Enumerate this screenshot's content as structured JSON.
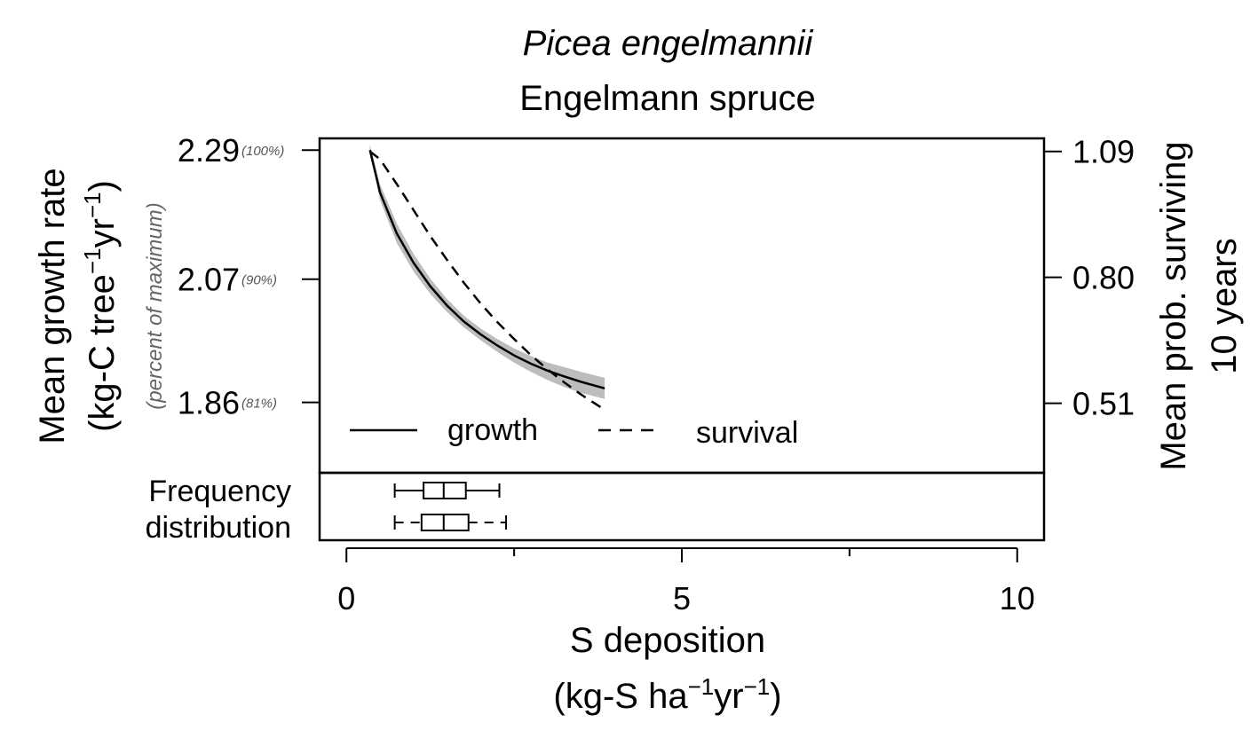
{
  "chart_data": {
    "type": "line",
    "title": "Picea engelmannii",
    "subtitle": "Engelmann spruce",
    "xlabel_line1": "S deposition",
    "xlabel_line2_prefix": "(kg-S ha",
    "xlabel_line2_mid": "yr",
    "xlabel_line2_end": ")",
    "exp": "−1",
    "ylabel_left_line1": "Mean growth rate",
    "ylabel_left_line2_prefix": "(kg-C tree",
    "ylabel_left_line2_mid": "yr",
    "ylabel_left_line2_end": ")",
    "ylabel_left_note": "(percent of maximum)",
    "ylabel_right_line1": "Mean prob. surviving",
    "ylabel_right_line2": "10 years",
    "xlim": [
      -0.4,
      10.4
    ],
    "x_ticks": [
      0,
      5,
      10
    ],
    "x_minor_ticks": [
      2.5,
      7.5
    ],
    "left_ylim": [
      1.74,
      2.31
    ],
    "left_ticks": [
      {
        "value": 2.29,
        "label": "2.29",
        "pct": "(100%)"
      },
      {
        "value": 2.07,
        "label": "2.07",
        "pct": "(90%)"
      },
      {
        "value": 1.86,
        "label": "1.86",
        "pct": "(81%)"
      }
    ],
    "right_ylim": [
      0.35,
      1.12
    ],
    "right_ticks": [
      1.09,
      0.8,
      0.51
    ],
    "right_tick_labels": [
      "1.09",
      "0.80",
      "0.51"
    ],
    "series": [
      {
        "name": "growth",
        "axis": "left",
        "style": "solid",
        "x": [
          0.35,
          0.5,
          0.75,
          1.0,
          1.25,
          1.5,
          1.75,
          2.0,
          2.25,
          2.5,
          2.75,
          3.0,
          3.25,
          3.5,
          3.85
        ],
        "y": [
          2.29,
          2.218,
          2.148,
          2.098,
          2.058,
          2.025,
          1.998,
          1.976,
          1.957,
          1.94,
          1.926,
          1.914,
          1.904,
          1.895,
          1.884
        ],
        "ci_low": [
          2.29,
          2.205,
          2.132,
          2.083,
          2.045,
          2.014,
          1.988,
          1.966,
          1.946,
          1.928,
          1.912,
          1.898,
          1.886,
          1.876,
          1.866
        ],
        "ci_high": [
          2.3,
          2.232,
          2.165,
          2.113,
          2.071,
          2.036,
          2.008,
          1.986,
          1.968,
          1.952,
          1.939,
          1.928,
          1.92,
          1.912,
          1.902
        ]
      },
      {
        "name": "survival",
        "axis": "right",
        "style": "dashed",
        "x": [
          0.35,
          0.5,
          0.75,
          1.0,
          1.25,
          1.5,
          1.75,
          2.0,
          2.25,
          2.5,
          2.75,
          3.0,
          3.25,
          3.5,
          3.85
        ],
        "y": [
          1.09,
          1.072,
          1.015,
          0.955,
          0.895,
          0.84,
          0.788,
          0.74,
          0.697,
          0.658,
          0.621,
          0.588,
          0.558,
          0.53,
          0.495
        ]
      }
    ],
    "legend": {
      "position": "bottom",
      "entries": [
        "growth",
        "survival"
      ]
    },
    "frequency_label_1": "Frequency",
    "frequency_label_2": "distribution",
    "boxplots": [
      {
        "style": "solid",
        "whisker_low": 0.72,
        "q1": 1.15,
        "median": 1.45,
        "q3": 1.78,
        "whisker_high": 2.28
      },
      {
        "style": "dashed",
        "whisker_low": 0.72,
        "q1": 1.12,
        "median": 1.45,
        "q3": 1.82,
        "whisker_high": 2.38
      }
    ]
  }
}
